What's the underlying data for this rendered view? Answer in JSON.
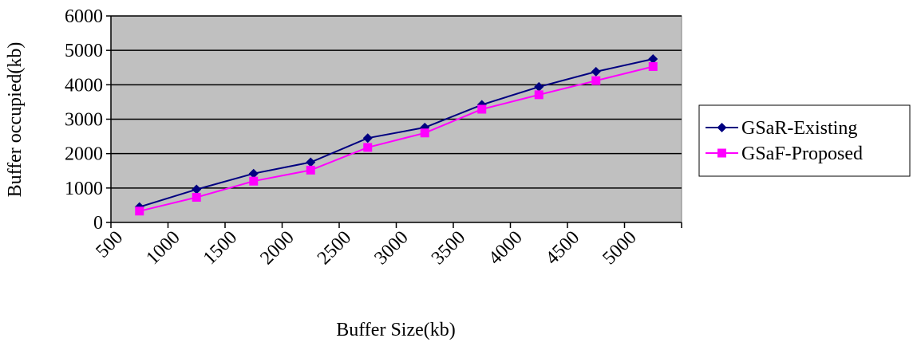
{
  "chart_data": {
    "type": "line",
    "xlabel": "Buffer Size(kb)",
    "ylabel": "Buffer occupied(kb)",
    "categories": [
      "500",
      "1000",
      "1500",
      "2000",
      "2500",
      "3000",
      "3500",
      "4000",
      "4500",
      "5000"
    ],
    "ylim": [
      0,
      6000
    ],
    "yticks": [
      "0",
      "1000",
      "2000",
      "3000",
      "4000",
      "5000",
      "6000"
    ],
    "grid": true,
    "plot_background": "#c0c0c0",
    "legend_position": "right",
    "series": [
      {
        "name": "GSaR-Existing",
        "color": "#000080",
        "marker": "diamond",
        "values": [
          450,
          960,
          1420,
          1750,
          2450,
          2760,
          3420,
          3940,
          4380,
          4750
        ]
      },
      {
        "name": "GSaF-Proposed",
        "color": "#ff00ff",
        "marker": "square",
        "values": [
          330,
          730,
          1200,
          1520,
          2180,
          2600,
          3290,
          3710,
          4120,
          4530
        ]
      }
    ]
  }
}
